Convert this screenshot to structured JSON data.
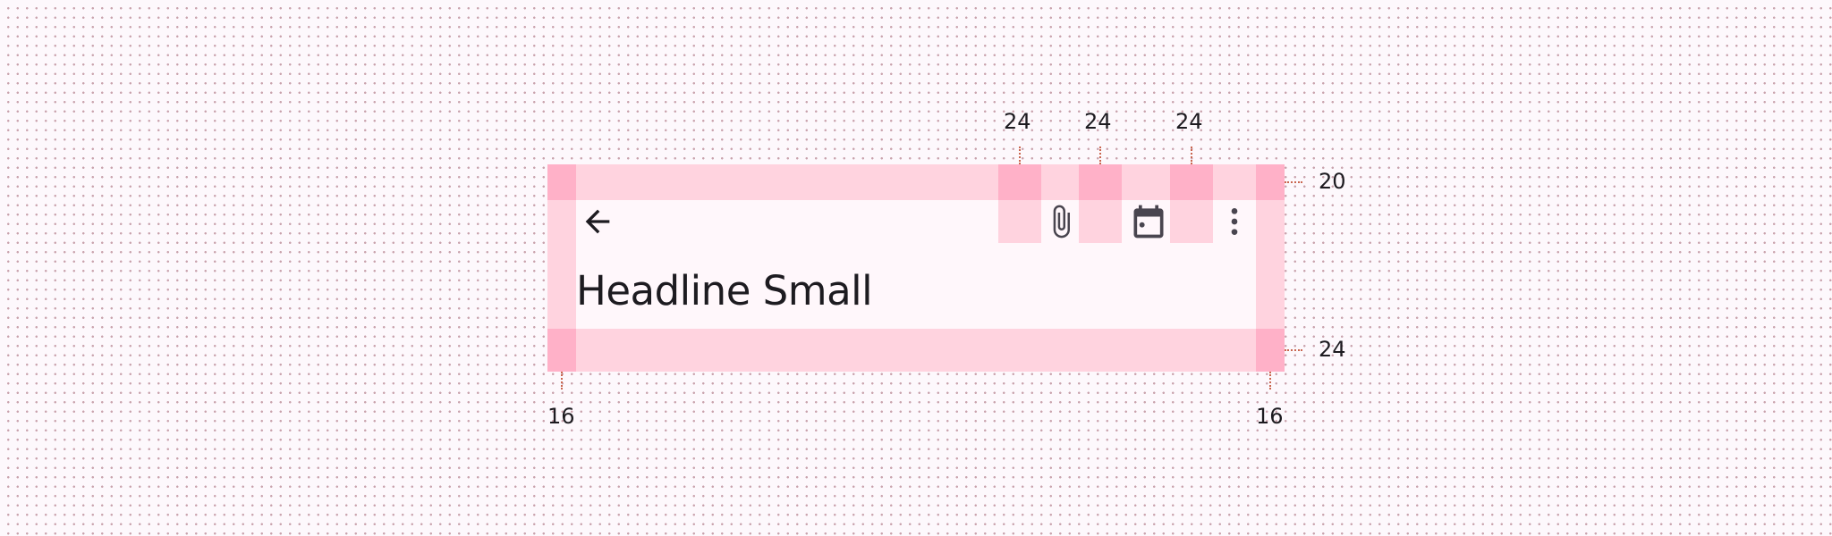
{
  "app_bar": {
    "headline": "Headline Small",
    "navigation_icon": "arrow-back-icon",
    "actions": [
      {
        "icon": "attach-file-icon"
      },
      {
        "icon": "calendar-today-icon"
      },
      {
        "icon": "more-vert-icon"
      }
    ]
  },
  "spec": {
    "padding_labels": {
      "top": "20",
      "bottom": "24",
      "left": "16",
      "right": "16",
      "icon_spacing": [
        "24",
        "24",
        "24"
      ]
    }
  },
  "colors": {
    "canvas": "#fdf8fc",
    "dot": "#c9a3ad",
    "padding_fill": "#ffd3df",
    "padding_corner": "#ffb1c8",
    "surface": "#fff7fb",
    "icon": "#49454f",
    "text": "#1d1b20",
    "measure_line": "#c9664f"
  }
}
